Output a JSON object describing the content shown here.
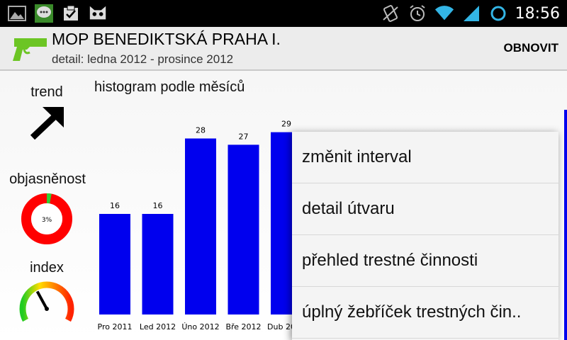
{
  "status_bar": {
    "time": "18:56",
    "left_icons": [
      "gallery-icon",
      "messenger-icon",
      "task-check-icon",
      "android-cat-icon"
    ],
    "right_icons": [
      "vibrate-icon",
      "alarm-icon",
      "wifi-icon",
      "signal-icon",
      "sync-icon"
    ]
  },
  "action_bar": {
    "title": "MOP BENEDIKTSKÁ PRAHA I.",
    "subtitle": "detail: ledna 2012 - prosince 2012",
    "refresh_label": "OBNOVIT",
    "logo_icon": "gun-icon",
    "logo_color": "#6cc524"
  },
  "sidebar": {
    "trend_label": "trend",
    "trend_icon": "arrow-up-right-icon",
    "clearance_label": "objasněnost",
    "clearance_percent": "3%",
    "clearance_value": 0.03,
    "index_label": "index",
    "index_gauge_level": 0.15
  },
  "chart_title": "histogram podle měsíců",
  "chart_data": {
    "type": "bar",
    "title": "histogram podle měsíců",
    "categories": [
      "Pro 2011",
      "Led 2012",
      "Úno 2012",
      "Bře 2012",
      "Dub 2012"
    ],
    "values": [
      16,
      16,
      28,
      27,
      29
    ],
    "bar_color": "#0000ee",
    "ylim": [
      0,
      32
    ]
  },
  "menu": {
    "items": [
      "změnit interval",
      "detail útvaru",
      "přehled trestné činnosti",
      "úplný žebříček trestných čin.."
    ]
  }
}
